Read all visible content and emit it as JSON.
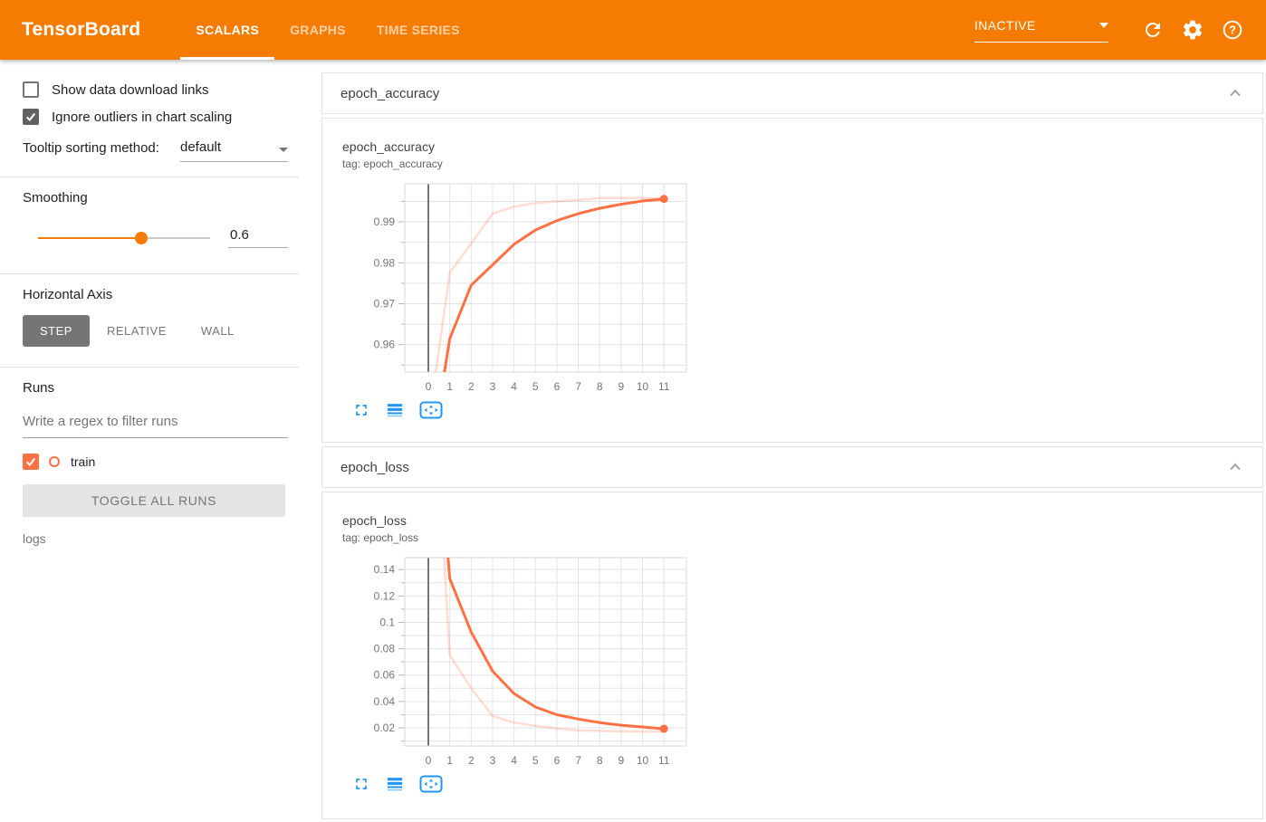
{
  "header": {
    "logo": "TensorBoard",
    "tabs": [
      "SCALARS",
      "GRAPHS",
      "TIME SERIES"
    ],
    "active_tab": "SCALARS",
    "status": "INACTIVE",
    "accent_color": "#f57c00"
  },
  "sidebar": {
    "checkboxes": [
      {
        "label": "Show data download links",
        "checked": false
      },
      {
        "label": "Ignore outliers in chart scaling",
        "checked": true
      }
    ],
    "tooltip_sorting": {
      "label": "Tooltip sorting method:",
      "value": "default"
    },
    "smoothing": {
      "label": "Smoothing",
      "value": "0.6"
    },
    "horizontal_axis": {
      "label": "Horizontal Axis",
      "options": [
        "STEP",
        "RELATIVE",
        "WALL"
      ],
      "selected": "STEP"
    },
    "runs": {
      "title": "Runs",
      "filter_placeholder": "Write a regex to filter runs",
      "items": [
        {
          "name": "train",
          "checked": true,
          "color": "#ff7043"
        }
      ],
      "toggle_all_label": "TOGGLE ALL RUNS",
      "group_label": "logs"
    }
  },
  "cards": [
    {
      "title": "epoch_accuracy"
    },
    {
      "title": "epoch_loss"
    }
  ],
  "icons": {
    "header": [
      "chevron-down-icon",
      "refresh-icon",
      "gear-icon",
      "help-icon"
    ],
    "chart_tools": [
      "fullscreen-icon",
      "view-data-icon",
      "fit-domain-icon"
    ],
    "card": [
      "chevron-up-icon"
    ]
  },
  "chart_data": [
    {
      "type": "line",
      "title": "epoch_accuracy",
      "tag_line": "tag: epoch_accuracy",
      "xlabel": "step",
      "ylabel": "",
      "legend_position": "none",
      "grid": true,
      "xlim": [
        -1.1,
        12.05
      ],
      "ylim": [
        0.9533,
        0.9993
      ],
      "y_minor_step": 0.005,
      "zero_line_x": 0,
      "xticks": [
        {
          "value": 0,
          "label": "0"
        },
        {
          "value": 1,
          "label": "1"
        },
        {
          "value": 2,
          "label": "2"
        },
        {
          "value": 3,
          "label": "3"
        },
        {
          "value": 4,
          "label": "4"
        },
        {
          "value": 5,
          "label": "5"
        },
        {
          "value": 6,
          "label": "6"
        },
        {
          "value": 7,
          "label": "7"
        },
        {
          "value": 8,
          "label": "8"
        },
        {
          "value": 9,
          "label": "9"
        },
        {
          "value": 10,
          "label": "10"
        },
        {
          "value": 11,
          "label": "11"
        }
      ],
      "yticks": [
        {
          "value": 0.96,
          "label": "0.96"
        },
        {
          "value": 0.97,
          "label": "0.97"
        },
        {
          "value": 0.98,
          "label": "0.98"
        },
        {
          "value": 0.99,
          "label": "0.99"
        }
      ],
      "x": [
        0,
        1,
        2,
        3,
        4,
        5,
        6,
        7,
        8,
        9,
        10,
        11
      ],
      "series": [
        {
          "name": "train (raw)",
          "color": "#ff7043",
          "opacity": 0.24,
          "stroke_width": 2.5,
          "end_dot": false,
          "values": [
            0.9402,
            0.9776,
            0.9847,
            0.992,
            0.9937,
            0.9946,
            0.995,
            0.9953,
            0.9958,
            0.9958,
            0.9958,
            0.9956
          ]
        },
        {
          "name": "train (smoothed 0.6)",
          "color": "#ff7043",
          "opacity": 1,
          "stroke_width": 3,
          "end_dot": true,
          "values": [
            0.9287,
            0.9615,
            0.9745,
            0.9795,
            0.9845,
            0.988,
            0.9903,
            0.992,
            0.9933,
            0.9943,
            0.9951,
            0.9956
          ]
        }
      ]
    },
    {
      "type": "line",
      "title": "epoch_loss",
      "tag_line": "tag: epoch_loss",
      "xlabel": "step",
      "ylabel": "",
      "legend_position": "none",
      "grid": true,
      "xlim": [
        -1.1,
        12.05
      ],
      "ylim": [
        0.0063,
        0.149
      ],
      "y_minor_step": 0.01,
      "zero_line_x": 0,
      "xticks": [
        {
          "value": 0,
          "label": "0"
        },
        {
          "value": 1,
          "label": "1"
        },
        {
          "value": 2,
          "label": "2"
        },
        {
          "value": 3,
          "label": "3"
        },
        {
          "value": 4,
          "label": "4"
        },
        {
          "value": 5,
          "label": "5"
        },
        {
          "value": 6,
          "label": "6"
        },
        {
          "value": 7,
          "label": "7"
        },
        {
          "value": 8,
          "label": "8"
        },
        {
          "value": 9,
          "label": "9"
        },
        {
          "value": 10,
          "label": "10"
        },
        {
          "value": 11,
          "label": "11"
        }
      ],
      "yticks": [
        {
          "value": 0.02,
          "label": "0.02"
        },
        {
          "value": 0.04,
          "label": "0.04"
        },
        {
          "value": 0.06,
          "label": "0.06"
        },
        {
          "value": 0.08,
          "label": "0.08"
        },
        {
          "value": 0.1,
          "label": "0.1"
        },
        {
          "value": 0.12,
          "label": "0.12"
        },
        {
          "value": 0.14,
          "label": "0.14"
        }
      ],
      "x": [
        0,
        1,
        2,
        3,
        4,
        5,
        6,
        7,
        8,
        9,
        10,
        11
      ],
      "series": [
        {
          "name": "train (raw)",
          "color": "#ff7043",
          "opacity": 0.24,
          "stroke_width": 2.5,
          "end_dot": false,
          "values": [
            0.35,
            0.075,
            0.05,
            0.029,
            0.024,
            0.0215,
            0.0195,
            0.018,
            0.0177,
            0.0175,
            0.0173,
            0.0172
          ]
        },
        {
          "name": "train (smoothed 0.6)",
          "color": "#ff7043",
          "opacity": 1,
          "stroke_width": 3,
          "end_dot": true,
          "values": [
            0.32,
            0.133,
            0.0926,
            0.063,
            0.046,
            0.0358,
            0.03,
            0.0267,
            0.024,
            0.022,
            0.0207,
            0.0193
          ]
        }
      ]
    }
  ]
}
